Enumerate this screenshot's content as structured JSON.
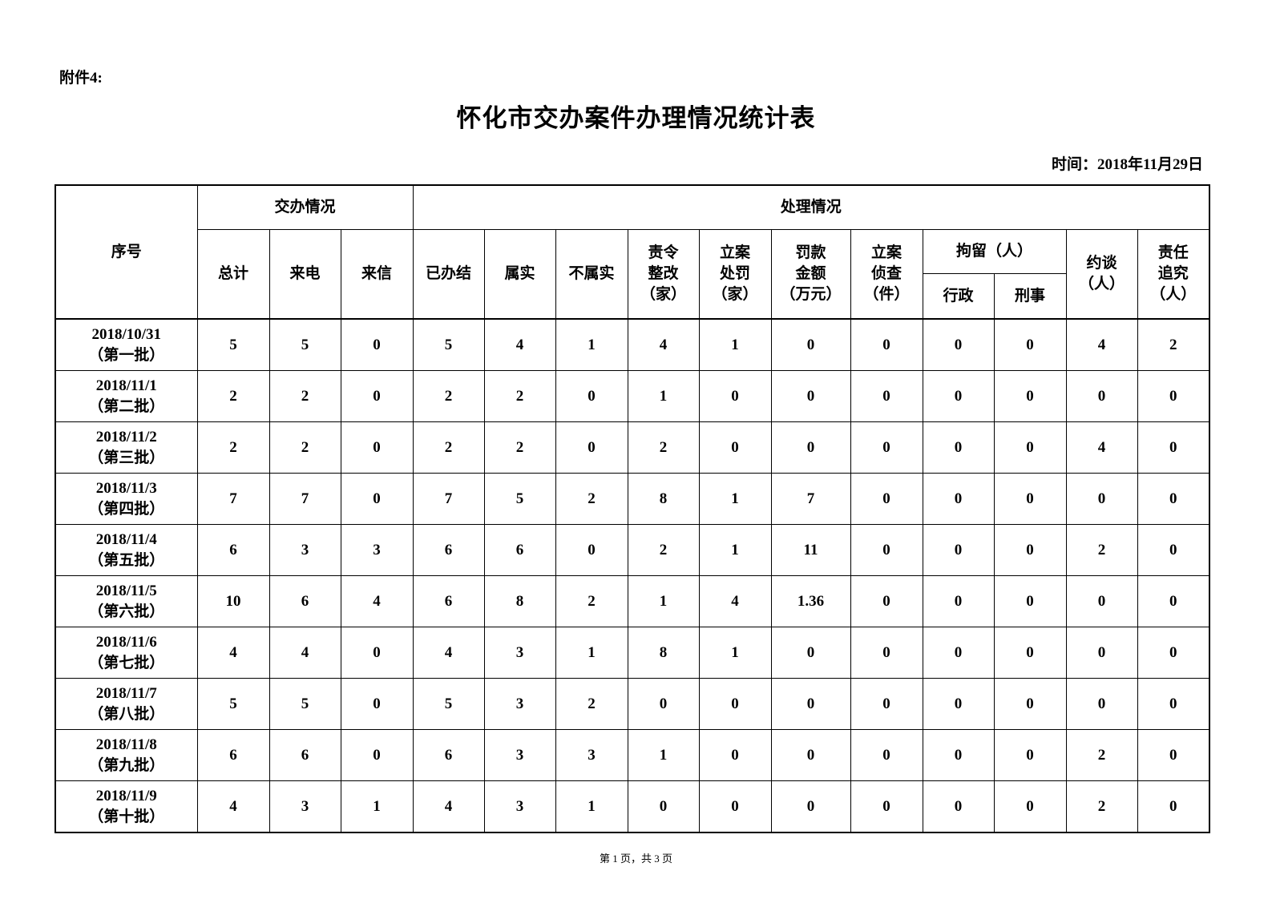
{
  "attachment": "附件4:",
  "title": "怀化市交办案件办理情况统计表",
  "date": "时间：2018年11月29日",
  "headers": {
    "seq": "序号",
    "assigned": "交办情况",
    "handled": "处理情况",
    "total": "总计",
    "phone": "来电",
    "letter": "来信",
    "closed": "已办结",
    "true": "属实",
    "untrue": "不属实",
    "rectify": "责令\n整改\n（家）",
    "penalty": "立案\n处罚\n（家）",
    "fine": "罚款\n金额\n（万元）",
    "investigate": "立案\n侦查\n（件）",
    "detain": "拘留（人）",
    "admin": "行政",
    "criminal": "刑事",
    "interview": "约谈\n（人）",
    "accountability": "责任\n追究\n（人）"
  },
  "rows": [
    {
      "seq": "2018/10/31\n（第一批）",
      "values": [
        "5",
        "5",
        "0",
        "5",
        "4",
        "1",
        "4",
        "1",
        "0",
        "0",
        "0",
        "0",
        "4",
        "2"
      ]
    },
    {
      "seq": "2018/11/1\n（第二批）",
      "values": [
        "2",
        "2",
        "0",
        "2",
        "2",
        "0",
        "1",
        "0",
        "0",
        "0",
        "0",
        "0",
        "0",
        "0"
      ]
    },
    {
      "seq": "2018/11/2\n（第三批）",
      "values": [
        "2",
        "2",
        "0",
        "2",
        "2",
        "0",
        "2",
        "0",
        "0",
        "0",
        "0",
        "0",
        "4",
        "0"
      ]
    },
    {
      "seq": "2018/11/3\n（第四批）",
      "values": [
        "7",
        "7",
        "0",
        "7",
        "5",
        "2",
        "8",
        "1",
        "7",
        "0",
        "0",
        "0",
        "0",
        "0"
      ]
    },
    {
      "seq": "2018/11/4\n（第五批）",
      "values": [
        "6",
        "3",
        "3",
        "6",
        "6",
        "0",
        "2",
        "1",
        "11",
        "0",
        "0",
        "0",
        "2",
        "0"
      ]
    },
    {
      "seq": "2018/11/5\n（第六批）",
      "values": [
        "10",
        "6",
        "4",
        "6",
        "8",
        "2",
        "1",
        "4",
        "1.36",
        "0",
        "0",
        "0",
        "0",
        "0"
      ]
    },
    {
      "seq": "2018/11/6\n（第七批）",
      "values": [
        "4",
        "4",
        "0",
        "4",
        "3",
        "1",
        "8",
        "1",
        "0",
        "0",
        "0",
        "0",
        "0",
        "0"
      ]
    },
    {
      "seq": "2018/11/7\n（第八批）",
      "values": [
        "5",
        "5",
        "0",
        "5",
        "3",
        "2",
        "0",
        "0",
        "0",
        "0",
        "0",
        "0",
        "0",
        "0"
      ]
    },
    {
      "seq": "2018/11/8\n（第九批）",
      "values": [
        "6",
        "6",
        "0",
        "6",
        "3",
        "3",
        "1",
        "0",
        "0",
        "0",
        "0",
        "0",
        "2",
        "0"
      ]
    },
    {
      "seq": "2018/11/9\n（第十批）",
      "values": [
        "4",
        "3",
        "1",
        "4",
        "3",
        "1",
        "0",
        "0",
        "0",
        "0",
        "0",
        "0",
        "2",
        "0"
      ]
    }
  ],
  "footer": "第 1 页，共 3 页"
}
